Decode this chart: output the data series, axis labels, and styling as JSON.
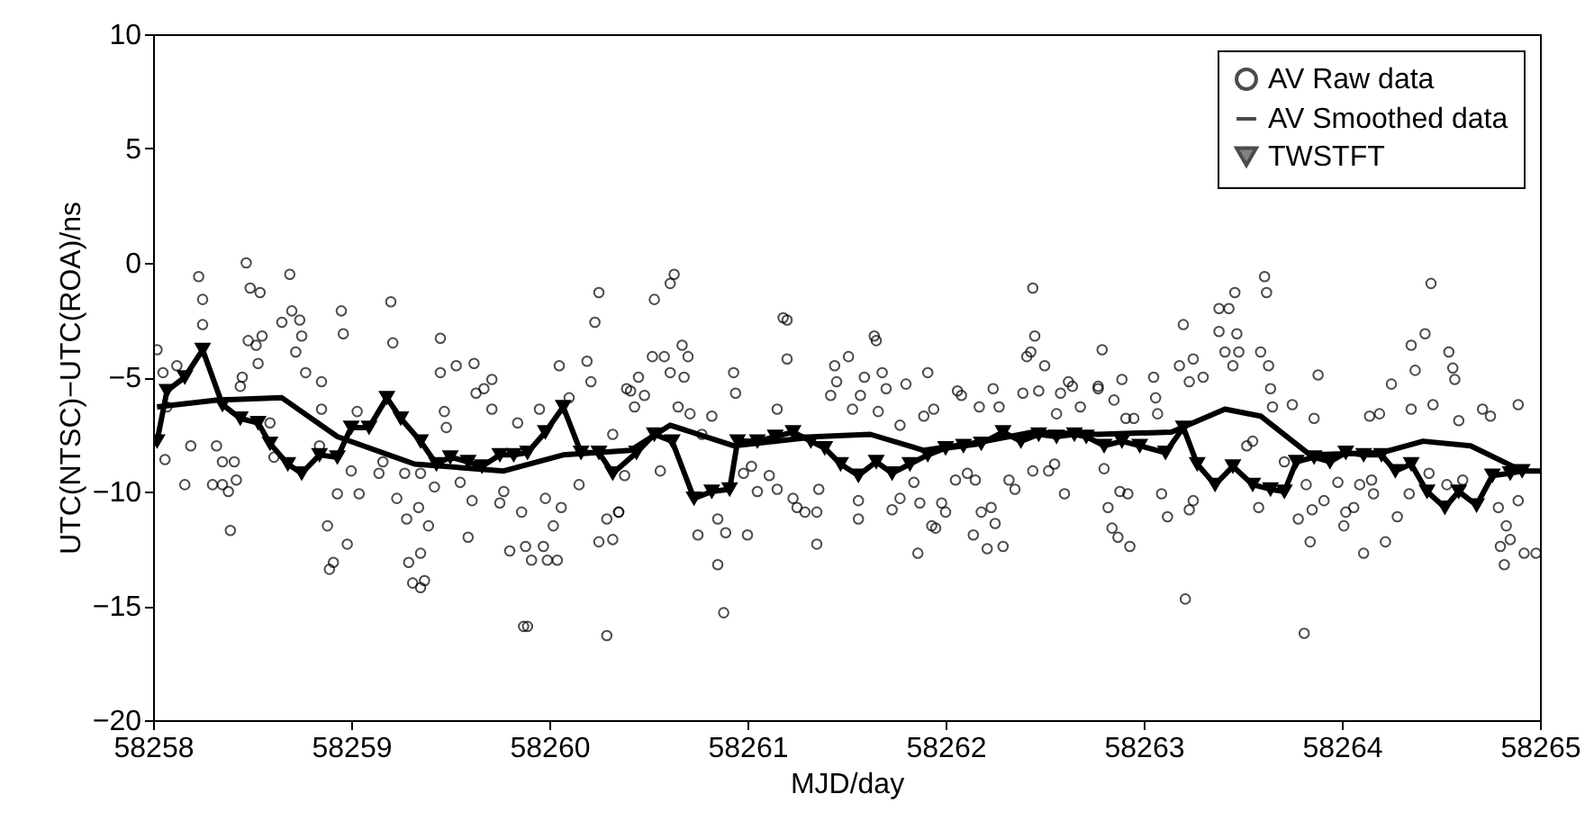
{
  "chart_data": {
    "type": "scatter",
    "xlabel": "MJD/day",
    "ylabel": "UTC(NTSC)−UTC(ROA)/ns",
    "xlim": [
      58258,
      58265
    ],
    "xticks": [
      58258,
      58259,
      58260,
      58261,
      58262,
      58263,
      58264,
      58265
    ],
    "ylim": [
      -20,
      10
    ],
    "yticks": [
      -20,
      -15,
      -10,
      -5,
      0,
      5,
      10
    ],
    "grid": false,
    "legend": "top right",
    "series": [
      {
        "name": "AV Raw data",
        "type": "scatter",
        "marker": "circle",
        "color": "#000000",
        "x": [
          58258.02,
          58258.23,
          58258.25,
          58258.25,
          58258.47,
          58258.49,
          58258.54,
          58258.69,
          58258.7,
          58258.65,
          58258.74,
          58258.75,
          58258.48,
          58258.52,
          58258.55,
          58258.53,
          58258.72,
          58258.77,
          58258.85,
          58258.95,
          58258.96,
          58259.2,
          58259.21,
          58259.45,
          58259.45,
          58259.53,
          58259.62,
          58259.71,
          58259.67,
          58259.63,
          58260.05,
          58260.1,
          58260.19,
          58260.21,
          58260.23,
          58260.25,
          58260.39,
          58258.05,
          58258.12,
          58258.07,
          58258.06,
          58258.16,
          58258.19,
          58258.3,
          58258.35,
          58258.38,
          58258.39,
          58258.35,
          58258.41,
          58258.42,
          58258.32,
          58258.45,
          58258.44,
          58258.59,
          58258.61,
          58258.88,
          58258.91,
          58258.89,
          58258.93,
          58258.98,
          58259.04,
          58259.0,
          58259.14,
          58259.23,
          58259.28,
          58259.29,
          58259.31,
          58259.35,
          58259.37,
          58259.35,
          58259.34,
          58259.39,
          58259.42,
          58259.55,
          58259.59,
          58259.61,
          58259.75,
          58259.77,
          58259.8,
          58259.86,
          58259.88,
          58259.91,
          58259.97,
          58259.99,
          58260.04,
          58259.87,
          58259.89,
          58260.29,
          58260.25,
          58260.29,
          58260.35,
          58260.15,
          58260.02,
          58260.06,
          58259.98,
          58259.95,
          58259.84,
          58259.71,
          58259.47,
          58259.48,
          58259.35,
          58259.27,
          58259.16,
          58259.03,
          58258.84,
          58258.85,
          58260.53,
          58260.61,
          58260.63,
          58260.67,
          58260.7,
          58260.52,
          58260.58,
          58260.61,
          58260.68,
          58260.45,
          58260.41,
          58260.48,
          58260.43,
          58260.32,
          58260.35,
          58260.32,
          58260.38,
          58260.56,
          58260.65,
          58260.71,
          58260.77,
          58260.82,
          58260.75,
          58260.85,
          58260.89,
          58260.85,
          58260.88,
          58260.93,
          58260.94,
          58261.0,
          58260.98,
          58261.05,
          58261.02,
          58261.11,
          58261.15,
          58261.23,
          58261.25,
          58261.29,
          58261.35,
          58261.36,
          58261.35,
          58261.18,
          58261.2,
          58261.2,
          58261.15,
          58261.44,
          58261.51,
          58261.45,
          58261.42,
          58261.53,
          58261.59,
          58261.57,
          58261.64,
          58261.65,
          58261.68,
          58261.7,
          58261.66,
          58261.56,
          58261.56,
          58261.8,
          58261.77,
          58261.89,
          58261.91,
          58261.94,
          58261.73,
          58261.77,
          58261.84,
          58261.87,
          58261.86,
          58261.93,
          58261.95,
          58261.98,
          58262.0,
          58262.05,
          58262.11,
          58262.15,
          58262.14,
          58262.18,
          58262.23,
          58262.25,
          58262.21,
          58262.29,
          58262.32,
          58262.35,
          58262.06,
          58262.08,
          58262.24,
          58262.27,
          58262.17,
          58262.44,
          58262.41,
          58262.43,
          58262.45,
          58262.5,
          58262.39,
          58262.47,
          58262.58,
          58262.62,
          58262.64,
          58262.77,
          58262.68,
          58262.56,
          58262.52,
          58262.55,
          58262.6,
          58262.44,
          58262.79,
          58262.77,
          58262.89,
          58262.85,
          58262.91,
          58262.95,
          58262.8,
          58262.82,
          58262.84,
          58262.87,
          58262.93,
          58262.88,
          58262.92,
          58263.05,
          58263.06,
          58263.07,
          58263.09,
          58263.12,
          58263.2,
          58263.18,
          58263.23,
          58263.25,
          58263.3,
          58263.25,
          58263.23,
          58263.21,
          58263.38,
          58263.43,
          58263.46,
          58263.38,
          58263.41,
          58263.47,
          58263.48,
          58263.45,
          58263.61,
          58263.62,
          58263.59,
          58263.63,
          58263.64,
          58263.65,
          58263.55,
          58263.52,
          58263.58,
          58263.75,
          58263.88,
          58263.86,
          58263.71,
          58263.82,
          58263.84,
          58263.78,
          58263.85,
          58263.91,
          58263.81,
          58263.98,
          58264.02,
          58264.01,
          58264.06,
          58264.09,
          58264.11,
          58264.15,
          58264.16,
          58264.22,
          58264.28,
          58264.25,
          58264.14,
          58264.19,
          58264.35,
          58264.37,
          58264.42,
          58264.45,
          58264.35,
          58264.46,
          58264.54,
          58264.56,
          58264.57,
          58264.59,
          58264.71,
          58264.75,
          58264.34,
          58264.44,
          58264.53,
          58264.61,
          58264.79,
          58264.83,
          58264.8,
          58264.85,
          58264.82,
          58264.92,
          58264.89,
          58264.89,
          58264.98
        ],
        "values": [
          -3.8,
          -0.6,
          -1.6,
          -2.7,
          0.0,
          -1.1,
          -1.3,
          -0.5,
          -2.1,
          -2.6,
          -2.5,
          -3.2,
          -3.4,
          -3.6,
          -3.2,
          -4.4,
          -3.9,
          -4.8,
          -5.2,
          -2.1,
          -3.1,
          -1.7,
          -3.5,
          -3.3,
          -4.8,
          -4.5,
          -4.4,
          -5.1,
          -5.5,
          -5.7,
          -4.5,
          -5.9,
          -4.3,
          -5.2,
          -2.6,
          -1.3,
          -5.5,
          -4.8,
          -4.5,
          -6.3,
          -8.6,
          -9.7,
          -8.0,
          -9.7,
          -9.7,
          -10.0,
          -11.7,
          -8.7,
          -8.7,
          -9.5,
          -8.0,
          -5.0,
          -5.4,
          -7.0,
          -8.5,
          -11.5,
          -13.1,
          -13.4,
          -10.1,
          -12.3,
          -10.1,
          -9.1,
          -9.2,
          -10.3,
          -11.2,
          -13.1,
          -14.0,
          -14.2,
          -13.9,
          -12.7,
          -10.7,
          -11.5,
          -9.8,
          -9.6,
          -12.0,
          -10.4,
          -10.5,
          -10.0,
          -12.6,
          -10.9,
          -12.4,
          -13.0,
          -12.4,
          -13.0,
          -13.0,
          -15.9,
          -15.9,
          -16.3,
          -12.2,
          -11.2,
          -10.9,
          -9.7,
          -11.5,
          -10.7,
          -10.3,
          -6.4,
          -7.0,
          -6.4,
          -6.5,
          -7.2,
          -9.2,
          -9.2,
          -8.7,
          -6.5,
          -8.0,
          -6.4,
          -1.6,
          -0.9,
          -0.5,
          -3.6,
          -4.1,
          -4.1,
          -4.1,
          -4.8,
          -5.0,
          -5.0,
          -5.6,
          -5.8,
          -6.3,
          -7.5,
          -10.9,
          -12.1,
          -9.3,
          -9.1,
          -6.3,
          -6.6,
          -7.5,
          -6.7,
          -11.9,
          -11.2,
          -11.8,
          -13.2,
          -15.3,
          -4.8,
          -5.7,
          -11.9,
          -9.2,
          -10.0,
          -8.9,
          -9.3,
          -9.9,
          -10.3,
          -10.7,
          -10.9,
          -10.9,
          -9.9,
          -12.3,
          -2.4,
          -2.5,
          -4.2,
          -6.4,
          -4.5,
          -4.1,
          -5.2,
          -5.8,
          -6.4,
          -5.0,
          -5.8,
          -3.2,
          -3.4,
          -4.8,
          -5.5,
          -6.5,
          -10.4,
          -11.2,
          -5.3,
          -7.1,
          -6.7,
          -4.8,
          -6.4,
          -10.8,
          -10.3,
          -9.6,
          -10.5,
          -12.7,
          -11.5,
          -11.6,
          -10.5,
          -10.9,
          -9.5,
          -9.2,
          -9.5,
          -11.9,
          -10.9,
          -10.7,
          -11.4,
          -12.5,
          -12.4,
          -9.5,
          -9.9,
          -5.6,
          -5.8,
          -5.5,
          -6.3,
          -6.3,
          -1.1,
          -4.1,
          -3.9,
          -3.2,
          -4.5,
          -5.7,
          -5.6,
          -5.7,
          -5.2,
          -5.4,
          -5.5,
          -6.3,
          -6.6,
          -9.1,
          -8.8,
          -10.1,
          -9.1,
          -3.8,
          -5.4,
          -5.1,
          -6.0,
          -6.8,
          -6.8,
          -9.0,
          -10.7,
          -11.6,
          -12.0,
          -12.4,
          -10.0,
          -10.1,
          -5.0,
          -5.9,
          -6.6,
          -10.1,
          -11.1,
          -2.7,
          -4.5,
          -5.2,
          -4.2,
          -5.0,
          -10.4,
          -10.8,
          -14.7,
          -2.0,
          -2.0,
          -1.3,
          -3.0,
          -3.9,
          -3.1,
          -3.9,
          -4.5,
          -0.6,
          -1.3,
          -3.9,
          -4.5,
          -5.5,
          -6.3,
          -7.8,
          -8.0,
          -10.7,
          -6.2,
          -4.9,
          -6.8,
          -8.7,
          -9.7,
          -12.2,
          -11.2,
          -10.8,
          -10.4,
          -16.2,
          -9.6,
          -10.9,
          -11.5,
          -10.7,
          -9.7,
          -12.7,
          -9.5,
          -10.1,
          -12.2,
          -11.1,
          -5.3,
          -6.7,
          -6.6,
          -3.6,
          -4.7,
          -3.1,
          -0.9,
          -6.4,
          -6.2,
          -3.9,
          -4.6,
          -5.1,
          -6.9,
          -6.4,
          -6.7,
          -10.1,
          -9.2,
          -9.7,
          -9.5,
          -10.7,
          -11.5,
          -12.4,
          -12.1,
          -13.2,
          -12.7,
          -6.2,
          -10.4,
          -12.7
        ]
      },
      {
        "name": "AV Smoothed data",
        "type": "line",
        "marker": "none",
        "color": "#000000",
        "x": [
          58258.02,
          58258.32,
          58258.65,
          58258.93,
          58259.32,
          58259.77,
          58260.07,
          58260.41,
          58260.61,
          58260.93,
          58261.35,
          58261.62,
          58261.89,
          58262.2,
          58262.44,
          58262.77,
          58263.14,
          58263.41,
          58263.59,
          58263.84,
          58264.2,
          58264.41,
          58264.65,
          58264.91,
          58265
        ],
        "values": [
          -6.3,
          -6.0,
          -5.9,
          -7.6,
          -8.8,
          -9.1,
          -8.4,
          -8.2,
          -7.1,
          -8.0,
          -7.6,
          -7.5,
          -8.2,
          -7.8,
          -7.4,
          -7.5,
          -7.4,
          -6.4,
          -6.7,
          -8.4,
          -8.3,
          -7.8,
          -8.0,
          -9.1,
          -9.1
        ]
      },
      {
        "name": "TWSTFT",
        "type": "line",
        "marker": "triangle",
        "color": "#000000",
        "x": [
          58258.02,
          58258.07,
          58258.16,
          58258.25,
          58258.35,
          58258.44,
          58258.53,
          58258.59,
          58258.68,
          58258.75,
          58258.84,
          58258.93,
          58259.0,
          58259.09,
          58259.18,
          58259.25,
          58259.35,
          58259.43,
          58259.5,
          58259.59,
          58259.66,
          58259.75,
          58259.82,
          58259.89,
          58259.98,
          58260.07,
          58260.16,
          58260.25,
          58260.32,
          58260.44,
          58260.53,
          58260.62,
          58260.73,
          58260.82,
          58260.91,
          58260.95,
          58261.05,
          58261.14,
          58261.23,
          58261.32,
          58261.39,
          58261.47,
          58261.56,
          58261.65,
          58261.73,
          58261.82,
          58261.91,
          58262.0,
          58262.09,
          58262.18,
          58262.29,
          58262.38,
          58262.47,
          58262.56,
          58262.65,
          58262.71,
          58262.8,
          58262.89,
          58262.98,
          58263.11,
          58263.2,
          58263.27,
          58263.36,
          58263.45,
          58263.55,
          58263.64,
          58263.71,
          58263.77,
          58263.86,
          58263.94,
          58264.02,
          58264.11,
          58264.2,
          58264.27,
          58264.35,
          58264.43,
          58264.52,
          58264.59,
          58264.68,
          58264.76,
          58264.85,
          58264.91
        ],
        "values": [
          -7.8,
          -5.6,
          -5.0,
          -3.8,
          -6.2,
          -6.8,
          -7.0,
          -7.9,
          -8.8,
          -9.2,
          -8.4,
          -8.5,
          -7.2,
          -7.2,
          -5.9,
          -6.8,
          -7.8,
          -8.8,
          -8.5,
          -8.7,
          -8.9,
          -8.4,
          -8.4,
          -8.3,
          -7.4,
          -6.3,
          -8.3,
          -8.3,
          -9.2,
          -8.3,
          -7.5,
          -7.8,
          -10.3,
          -10.0,
          -9.9,
          -7.8,
          -7.8,
          -7.6,
          -7.4,
          -7.8,
          -8.1,
          -8.8,
          -9.3,
          -8.7,
          -9.2,
          -8.8,
          -8.4,
          -8.1,
          -8.0,
          -7.9,
          -7.4,
          -7.8,
          -7.5,
          -7.6,
          -7.5,
          -7.6,
          -8.0,
          -7.8,
          -8.0,
          -8.3,
          -7.2,
          -8.8,
          -9.7,
          -8.9,
          -9.7,
          -9.9,
          -10.0,
          -8.7,
          -8.5,
          -8.7,
          -8.3,
          -8.4,
          -8.4,
          -9.1,
          -8.8,
          -10.0,
          -10.7,
          -10.0,
          -10.6,
          -9.3,
          -9.2,
          -9.1
        ]
      }
    ]
  }
}
